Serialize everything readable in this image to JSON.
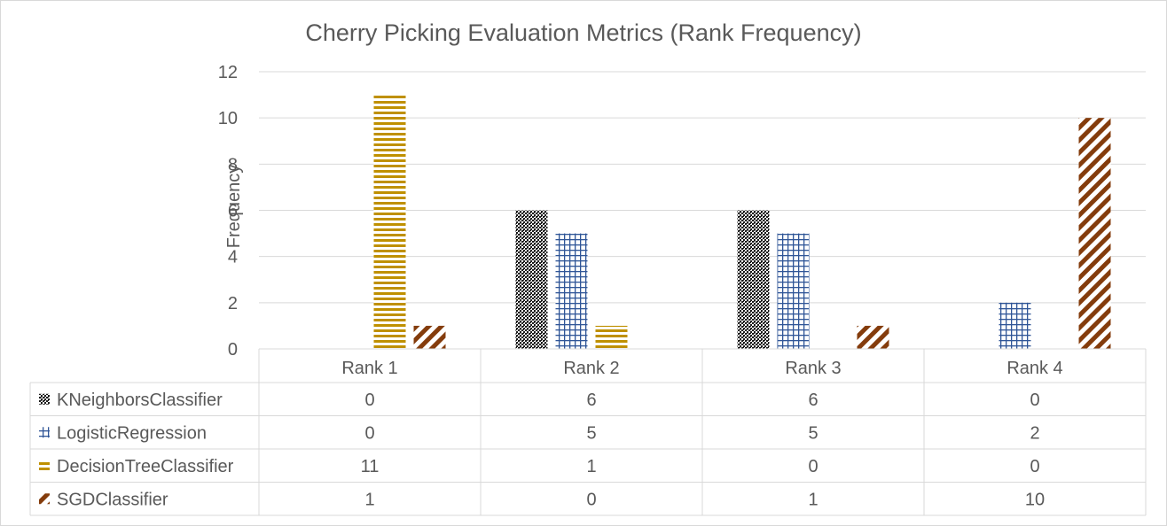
{
  "chart_data": {
    "type": "bar",
    "title": "Cherry Picking Evaluation Metrics (Rank Frequency)",
    "ylabel": "Frequency",
    "xlabel": "",
    "categories": [
      "Rank 1",
      "Rank 2",
      "Rank 3",
      "Rank 4"
    ],
    "ylim": [
      0,
      12
    ],
    "yticks": [
      0,
      2,
      4,
      6,
      8,
      10,
      12
    ],
    "ytick_labels": [
      "0",
      "2",
      "4",
      "6",
      "8",
      "10",
      "12"
    ],
    "grid": "horizontal",
    "legend": "data-table",
    "series": [
      {
        "name": "KNeighborsClassifier",
        "values": [
          0,
          6,
          6,
          0
        ],
        "color": "#1a1a1a",
        "pattern": "dots"
      },
      {
        "name": "LogisticRegression",
        "values": [
          0,
          5,
          5,
          2
        ],
        "color": "#2f5597",
        "pattern": "grid"
      },
      {
        "name": "DecisionTreeClassifier",
        "values": [
          11,
          1,
          0,
          0
        ],
        "color": "#bf9000",
        "pattern": "hlines"
      },
      {
        "name": "SGDClassifier",
        "values": [
          1,
          0,
          1,
          10
        ],
        "color": "#843c0c",
        "pattern": "diagonal"
      }
    ]
  }
}
